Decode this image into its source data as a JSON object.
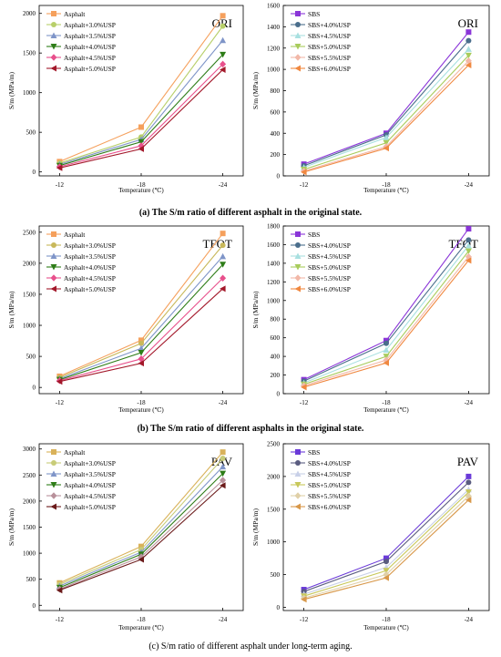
{
  "captions": [
    {
      "letter": "(a)",
      "text": " The S/m ratio of different asphalt in the original state.",
      "bold": true
    },
    {
      "letter": "(b)",
      "text": " The S/m ratio of different asphalts in the original state.",
      "bold": true
    },
    {
      "letter": "(c)",
      "text": " S/m ratio of different asphalt under long-term aging.",
      "bold": false
    }
  ],
  "chart_data": [
    {
      "type": "line",
      "panel": "ORI-asphalt",
      "label": "ORI",
      "categories": [
        "-12",
        "-18",
        "-24"
      ],
      "xlabel": "Temperature (℃)",
      "ylabel": "S/m (MPa/m)",
      "ylim": [
        -50,
        2100
      ],
      "yticks": [
        0,
        500,
        1000,
        1500,
        2000
      ],
      "legend": "top-left",
      "series": [
        {
          "name": "Asphalt",
          "color": "#f5a05c",
          "marker": "square",
          "values": [
            130,
            565,
            1970
          ]
        },
        {
          "name": "Asphalt+3.0%USP",
          "color": "#b8cf6a",
          "marker": "circle",
          "values": [
            110,
            440,
            1840
          ]
        },
        {
          "name": "Asphalt+3.5%USP",
          "color": "#7f95c8",
          "marker": "triangle-up",
          "values": [
            95,
            410,
            1660
          ]
        },
        {
          "name": "Asphalt+4.0%USP",
          "color": "#2e7d18",
          "marker": "triangle-down",
          "values": [
            80,
            380,
            1480
          ]
        },
        {
          "name": "Asphalt+4.5%USP",
          "color": "#e8508c",
          "marker": "diamond",
          "values": [
            65,
            330,
            1360
          ]
        },
        {
          "name": "Asphalt+5.0%USP",
          "color": "#a3182a",
          "marker": "triangle-left",
          "values": [
            50,
            290,
            1290
          ]
        }
      ]
    },
    {
      "type": "line",
      "panel": "ORI-SBS",
      "label": "ORI",
      "categories": [
        "-12",
        "-18",
        "-24"
      ],
      "xlabel": "Temperature (℃)",
      "ylabel": "S/m (MPa/m)",
      "ylim": [
        0,
        1600
      ],
      "yticks": [
        0,
        200,
        400,
        600,
        800,
        1000,
        1200,
        1400,
        1600
      ],
      "legend": "top-left",
      "series": [
        {
          "name": "SBS",
          "color": "#8a35d8",
          "marker": "square",
          "values": [
            110,
            400,
            1350
          ]
        },
        {
          "name": "SBS+4.0%USP",
          "color": "#4a6e8c",
          "marker": "circle",
          "values": [
            95,
            385,
            1270
          ]
        },
        {
          "name": "SBS+4.5%USP",
          "color": "#a8e0e0",
          "marker": "triangle-up",
          "values": [
            80,
            360,
            1190
          ]
        },
        {
          "name": "SBS+5.0%USP",
          "color": "#a8cc5c",
          "marker": "triangle-down",
          "values": [
            60,
            310,
            1130
          ]
        },
        {
          "name": "SBS+5.5%USP",
          "color": "#f2b8a8",
          "marker": "diamond",
          "values": [
            45,
            275,
            1080
          ]
        },
        {
          "name": "SBS+6.0%USP",
          "color": "#f08840",
          "marker": "triangle-left",
          "values": [
            35,
            260,
            1040
          ]
        }
      ]
    },
    {
      "type": "line",
      "panel": "TFOT-asphalt",
      "label": "TFOT",
      "categories": [
        "-12",
        "-18",
        "-24"
      ],
      "xlabel": "Temperature (℃)",
      "ylabel": "S/m (MPa/m)",
      "ylim": [
        -100,
        2600
      ],
      "yticks": [
        0,
        500,
        1000,
        1500,
        2000,
        2500
      ],
      "legend": "top-left",
      "series": [
        {
          "name": "Asphalt",
          "color": "#f5a05c",
          "marker": "square",
          "values": [
            180,
            760,
            2480
          ]
        },
        {
          "name": "Asphalt+3.0%USP",
          "color": "#c8b85a",
          "marker": "circle",
          "values": [
            160,
            710,
            2290
          ]
        },
        {
          "name": "Asphalt+3.5%USP",
          "color": "#7f95c8",
          "marker": "triangle-up",
          "values": [
            140,
            630,
            2110
          ]
        },
        {
          "name": "Asphalt+4.0%USP",
          "color": "#2e7d18",
          "marker": "triangle-down",
          "values": [
            125,
            560,
            1980
          ]
        },
        {
          "name": "Asphalt+4.5%USP",
          "color": "#e8508c",
          "marker": "diamond",
          "values": [
            110,
            460,
            1760
          ]
        },
        {
          "name": "Asphalt+5.0%USP",
          "color": "#a3182a",
          "marker": "triangle-left",
          "values": [
            95,
            390,
            1590
          ]
        }
      ]
    },
    {
      "type": "line",
      "panel": "TFOT-SBS",
      "label": "TFOT",
      "categories": [
        "-12",
        "-18",
        "-24"
      ],
      "xlabel": "Temperature (℃)",
      "ylabel": "S/m (MPa/m)",
      "ylim": [
        0,
        1800
      ],
      "yticks": [
        0,
        200,
        400,
        600,
        800,
        1000,
        1200,
        1400,
        1600,
        1800
      ],
      "legend": "top-left",
      "series": [
        {
          "name": "SBS",
          "color": "#8a35d8",
          "marker": "square",
          "values": [
            150,
            570,
            1770
          ]
        },
        {
          "name": "SBS+4.0%USP",
          "color": "#4a6e8c",
          "marker": "circle",
          "values": [
            135,
            540,
            1650
          ]
        },
        {
          "name": "SBS+4.5%USP",
          "color": "#a8e0e0",
          "marker": "triangle-up",
          "values": [
            115,
            470,
            1590
          ]
        },
        {
          "name": "SBS+5.0%USP",
          "color": "#a8cc5c",
          "marker": "triangle-down",
          "values": [
            100,
            400,
            1530
          ]
        },
        {
          "name": "SBS+5.5%USP",
          "color": "#f2b8a8",
          "marker": "diamond",
          "values": [
            85,
            360,
            1470
          ]
        },
        {
          "name": "SBS+6.0%USP",
          "color": "#f08840",
          "marker": "triangle-left",
          "values": [
            70,
            330,
            1430
          ]
        }
      ]
    },
    {
      "type": "line",
      "panel": "PAV-asphalt",
      "label": "PAV",
      "categories": [
        "-12",
        "-18",
        "-24"
      ],
      "xlabel": "Temperature (℃)",
      "ylabel": "S/m (MPa/m)",
      "ylim": [
        -100,
        3100
      ],
      "yticks": [
        0,
        500,
        1000,
        1500,
        2000,
        2500,
        3000
      ],
      "legend": "top-left",
      "series": [
        {
          "name": "Asphalt",
          "color": "#d9b25a",
          "marker": "square",
          "values": [
            430,
            1130,
            2940
          ]
        },
        {
          "name": "Asphalt+3.0%USP",
          "color": "#c8cc78",
          "marker": "circle",
          "values": [
            400,
            1070,
            2820
          ]
        },
        {
          "name": "Asphalt+3.5%USP",
          "color": "#7f95c8",
          "marker": "triangle-up",
          "values": [
            370,
            1020,
            2660
          ]
        },
        {
          "name": "Asphalt+4.0%USP",
          "color": "#2e7d18",
          "marker": "triangle-down",
          "values": [
            340,
            980,
            2530
          ]
        },
        {
          "name": "Asphalt+4.5%USP",
          "color": "#b8909a",
          "marker": "diamond",
          "values": [
            310,
            930,
            2400
          ]
        },
        {
          "name": "Asphalt+5.0%USP",
          "color": "#6b1a1a",
          "marker": "triangle-left",
          "values": [
            290,
            880,
            2300
          ]
        }
      ]
    },
    {
      "type": "line",
      "panel": "PAV-SBS",
      "label": "PAV",
      "categories": [
        "-12",
        "-18",
        "-24"
      ],
      "xlabel": "Temperature (℃)",
      "ylabel": "S/m (MPa/m)",
      "ylim": [
        -50,
        2500
      ],
      "yticks": [
        0,
        500,
        1000,
        1500,
        2000,
        2500
      ],
      "legend": "top-left",
      "series": [
        {
          "name": "SBS",
          "color": "#6a3ad8",
          "marker": "square",
          "values": [
            270,
            750,
            2000
          ]
        },
        {
          "name": "SBS+4.0%USP",
          "color": "#5a5c80",
          "marker": "circle",
          "values": [
            240,
            700,
            1910
          ]
        },
        {
          "name": "SBS+4.5%USP",
          "color": "#c8d0e8",
          "marker": "triangle-up",
          "values": [
            200,
            610,
            1800
          ]
        },
        {
          "name": "SBS+5.0%USP",
          "color": "#c8c85a",
          "marker": "triangle-down",
          "values": [
            170,
            560,
            1760
          ]
        },
        {
          "name": "SBS+5.5%USP",
          "color": "#e0d0a8",
          "marker": "diamond",
          "values": [
            140,
            500,
            1700
          ]
        },
        {
          "name": "SBS+6.0%USP",
          "color": "#d8984a",
          "marker": "triangle-left",
          "values": [
            120,
            450,
            1640
          ]
        }
      ]
    }
  ]
}
